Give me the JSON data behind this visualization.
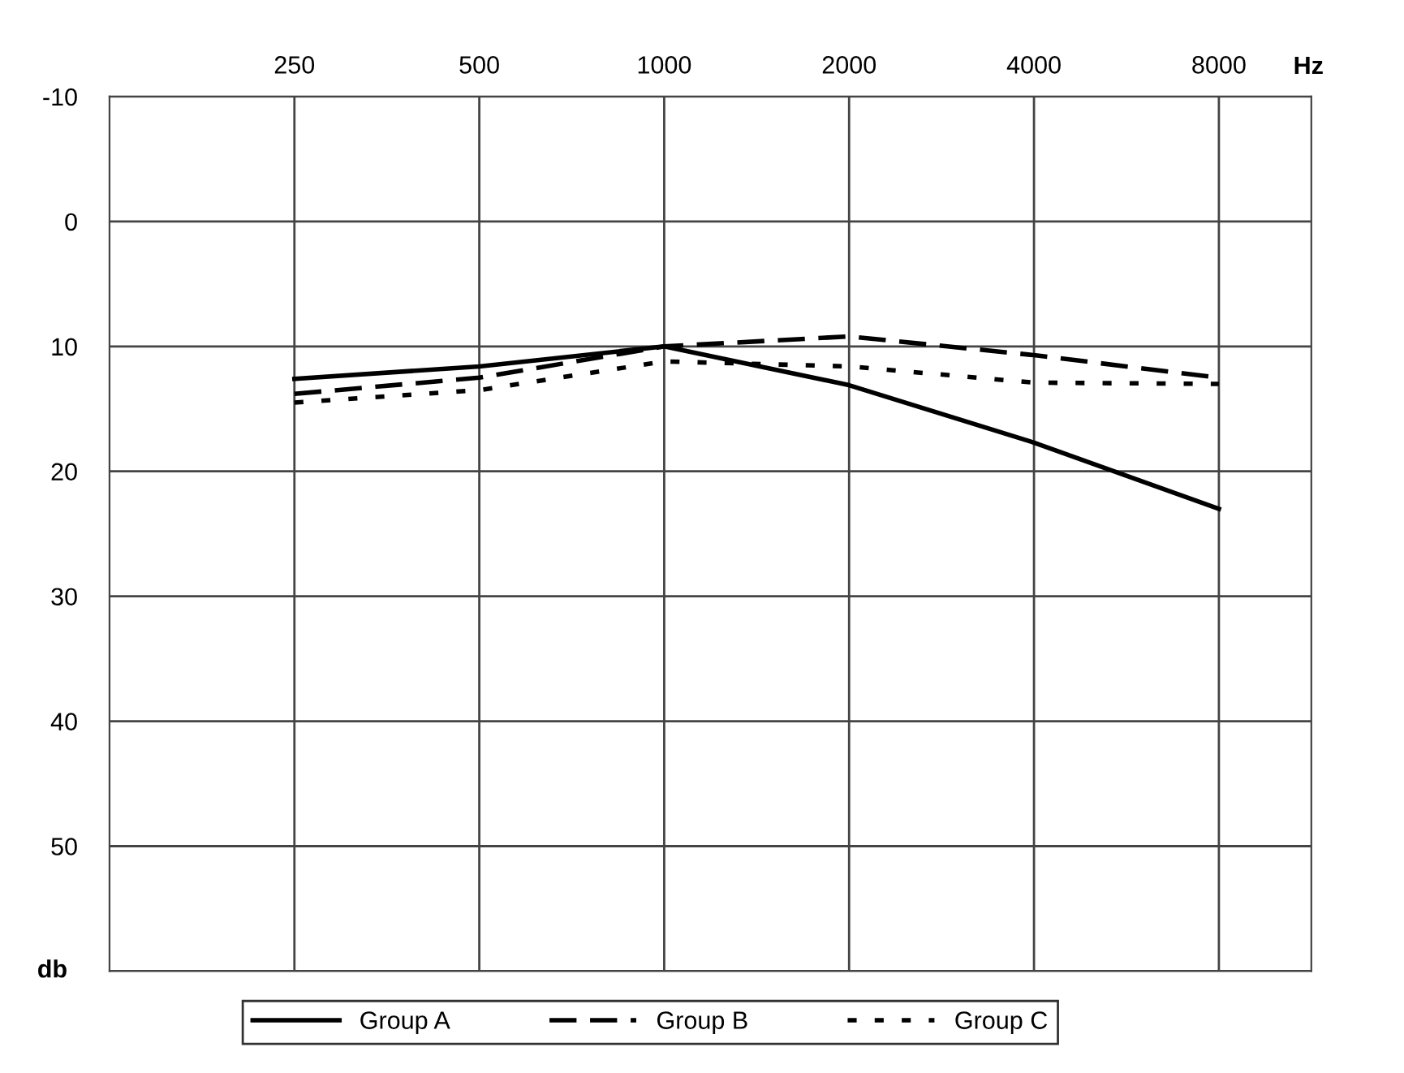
{
  "chart_data": {
    "type": "line",
    "xlabel": "Hz",
    "ylabel": "db",
    "categories": [
      "250",
      "500",
      "1000",
      "2000",
      "4000",
      "8000"
    ],
    "series": [
      {
        "name": "Group A",
        "color": "#000000",
        "line_style": "solid",
        "values": [
          12.6,
          11.6,
          10,
          13.1,
          17.7,
          23
        ]
      },
      {
        "name": "Group B",
        "color": "#000000",
        "line_style": "dashed",
        "values": [
          13.8,
          12.5,
          10,
          9.2,
          10.7,
          12.5
        ]
      },
      {
        "name": "Group C",
        "color": "#000000",
        "line_style": "dotted",
        "values": [
          14.5,
          13.5,
          11.2,
          11.6,
          12.9,
          13
        ]
      }
    ],
    "ylim": [
      60,
      -10
    ],
    "yticks": [
      -10,
      0,
      10,
      20,
      30,
      40,
      50,
      {
        "value": 60,
        "label": null
      }
    ],
    "grid": true,
    "legend": "bottom",
    "marker": "none"
  }
}
